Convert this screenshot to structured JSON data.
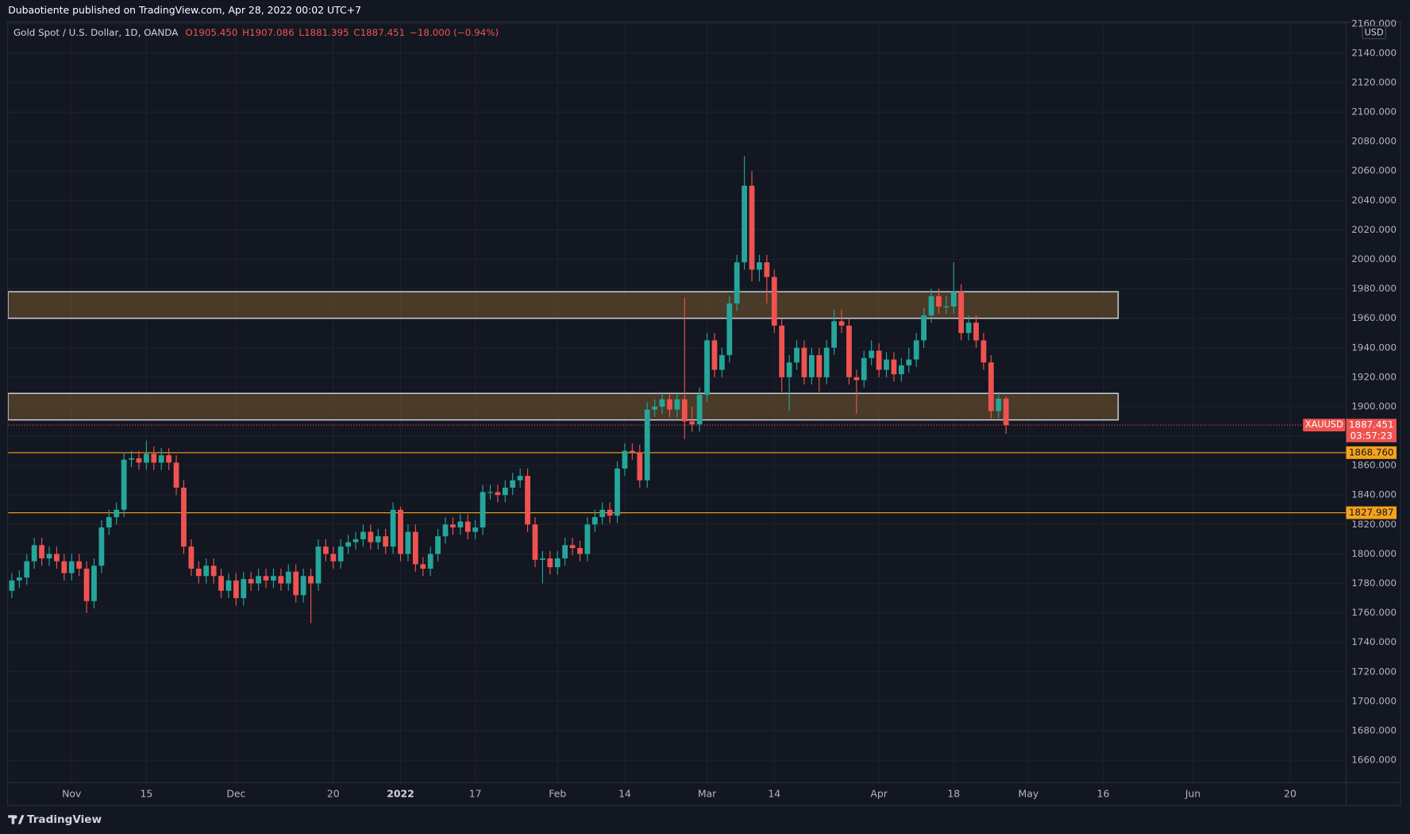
{
  "chart_data": {
    "type": "candlestick",
    "publisher_note": "Dubaotiente published on TradingView.com, Apr 28, 2022 00:02 UTC+7",
    "title": "Gold Spot / U.S. Dollar, 1D, OANDA",
    "ohlc_legend": [
      "O1905.450",
      "H1907.086",
      "L1881.395",
      "C1887.451",
      "−18.000 (−0.94%)"
    ],
    "symbol": "XAUUSD",
    "currency": "USD",
    "countdown": "03:57:23",
    "brand": "TradingView",
    "up_color": "#26a69a",
    "down_color": "#ef5350",
    "grid": true,
    "open": [
      1775,
      1782,
      1784,
      1795,
      1806,
      1797,
      1800,
      1795,
      1787,
      1795,
      1790,
      1768,
      1792,
      1818,
      1825,
      1830,
      1864,
      1865,
      1862,
      1868,
      1862,
      1867,
      1862,
      1845,
      1805,
      1790,
      1785,
      1792,
      1785,
      1775,
      1782,
      1770,
      1783,
      1780,
      1785,
      1782,
      1785,
      1780,
      1788,
      1772,
      1785,
      1780,
      1805,
      1800,
      1795,
      1805,
      1808,
      1810,
      1815,
      1808,
      1812,
      1805,
      1830,
      1800,
      1815,
      1793,
      1790,
      1800,
      1812,
      1820,
      1818,
      1822,
      1815,
      1818,
      1842,
      1842,
      1840,
      1845,
      1850,
      1853,
      1820,
      1796,
      1797,
      1791,
      1797,
      1806,
      1804,
      1800,
      1820,
      1825,
      1830,
      1826,
      1858,
      1870,
      1869,
      1850,
      1898,
      1900,
      1905,
      1898,
      1905,
      1890,
      1888,
      1908,
      1945,
      1925,
      1935,
      1970,
      1998,
      2050,
      1993,
      1998,
      1988,
      1955,
      1920,
      1930,
      1940,
      1920,
      1935,
      1920,
      1940,
      1958,
      1955,
      1920,
      1918,
      1933,
      1938,
      1925,
      1932,
      1922,
      1928,
      1932,
      1945,
      1962,
      1975,
      1968,
      1968,
      1978,
      1950,
      1957,
      1945,
      1930,
      1897,
      1905.45
    ],
    "high": [
      1787,
      1789,
      1800,
      1811,
      1811,
      1805,
      1805,
      1800,
      1800,
      1800,
      1795,
      1797,
      1823,
      1830,
      1835,
      1869,
      1870,
      1870,
      1877,
      1873,
      1872,
      1872,
      1867,
      1850,
      1810,
      1795,
      1797,
      1797,
      1790,
      1787,
      1787,
      1788,
      1788,
      1790,
      1790,
      1790,
      1790,
      1793,
      1793,
      1790,
      1790,
      1810,
      1810,
      1805,
      1810,
      1813,
      1815,
      1820,
      1820,
      1817,
      1817,
      1835,
      1832,
      1820,
      1820,
      1798,
      1805,
      1817,
      1825,
      1825,
      1827,
      1827,
      1823,
      1847,
      1847,
      1847,
      1850,
      1855,
      1858,
      1858,
      1825,
      1802,
      1802,
      1802,
      1811,
      1811,
      1809,
      1825,
      1830,
      1835,
      1835,
      1863,
      1875,
      1875,
      1874,
      1903,
      1905,
      1910,
      1910,
      1910,
      1974,
      1900,
      1913,
      1950,
      1950,
      1940,
      1975,
      2003,
      2070,
      2060,
      2003,
      2003,
      1993,
      1960,
      1935,
      1945,
      1945,
      1940,
      1940,
      1945,
      1966,
      1966,
      1960,
      1925,
      1938,
      1945,
      1943,
      1937,
      1937,
      1933,
      1940,
      1950,
      1967,
      1980,
      1980,
      1975,
      1998,
      1983,
      1962,
      1962,
      1950,
      1935,
      1910,
      1907.086
    ],
    "low": [
      1770,
      1777,
      1779,
      1790,
      1792,
      1792,
      1790,
      1782,
      1782,
      1785,
      1760,
      1763,
      1787,
      1813,
      1820,
      1825,
      1859,
      1857,
      1857,
      1857,
      1857,
      1857,
      1840,
      1800,
      1785,
      1780,
      1780,
      1780,
      1770,
      1770,
      1765,
      1765,
      1775,
      1775,
      1777,
      1777,
      1775,
      1775,
      1767,
      1767,
      1753,
      1775,
      1795,
      1790,
      1790,
      1800,
      1803,
      1805,
      1803,
      1803,
      1800,
      1800,
      1795,
      1795,
      1788,
      1785,
      1785,
      1795,
      1807,
      1813,
      1813,
      1810,
      1810,
      1813,
      1837,
      1835,
      1835,
      1840,
      1845,
      1815,
      1791,
      1780,
      1786,
      1786,
      1792,
      1799,
      1795,
      1795,
      1815,
      1820,
      1821,
      1821,
      1853,
      1864,
      1845,
      1845,
      1893,
      1895,
      1893,
      1893,
      1878,
      1883,
      1883,
      1903,
      1920,
      1920,
      1930,
      1965,
      1993,
      1985,
      1985,
      1970,
      1950,
      1910,
      1897,
      1925,
      1915,
      1915,
      1910,
      1915,
      1935,
      1950,
      1915,
      1895,
      1913,
      1928,
      1920,
      1920,
      1917,
      1917,
      1923,
      1927,
      1940,
      1957,
      1963,
      1963,
      1963,
      1945,
      1945,
      1940,
      1925,
      1892,
      1892,
      1881.395
    ],
    "close": [
      1782,
      1784,
      1795,
      1806,
      1797,
      1800,
      1795,
      1787,
      1795,
      1790,
      1768,
      1792,
      1818,
      1825,
      1830,
      1864,
      1865,
      1862,
      1868,
      1862,
      1867,
      1862,
      1845,
      1805,
      1790,
      1785,
      1792,
      1785,
      1775,
      1782,
      1770,
      1783,
      1780,
      1785,
      1782,
      1785,
      1780,
      1788,
      1772,
      1785,
      1780,
      1805,
      1800,
      1795,
      1805,
      1808,
      1810,
      1815,
      1808,
      1812,
      1805,
      1830,
      1800,
      1815,
      1793,
      1790,
      1800,
      1812,
      1820,
      1818,
      1822,
      1815,
      1818,
      1842,
      1842,
      1840,
      1845,
      1850,
      1853,
      1820,
      1796,
      1797,
      1791,
      1797,
      1806,
      1804,
      1800,
      1820,
      1825,
      1830,
      1826,
      1858,
      1870,
      1869,
      1850,
      1898,
      1900,
      1905,
      1898,
      1905,
      1890,
      1888,
      1908,
      1945,
      1925,
      1935,
      1970,
      1998,
      2050,
      1993,
      1998,
      1988,
      1955,
      1920,
      1930,
      1940,
      1920,
      1935,
      1920,
      1940,
      1958,
      1955,
      1920,
      1918,
      1933,
      1938,
      1925,
      1932,
      1922,
      1928,
      1932,
      1945,
      1962,
      1975,
      1968,
      1968,
      1978,
      1950,
      1957,
      1945,
      1930,
      1897,
      1905.45,
      1887.451
    ],
    "xlim": [
      -0.5,
      178.5
    ],
    "xticks": [
      {
        "value": 8,
        "label": "Nov"
      },
      {
        "value": 18,
        "label": "15"
      },
      {
        "value": 30,
        "label": "Dec"
      },
      {
        "value": 43,
        "label": "20"
      },
      {
        "value": 52,
        "label": "2022"
      },
      {
        "value": 62,
        "label": "17"
      },
      {
        "value": 73,
        "label": "Feb"
      },
      {
        "value": 82,
        "label": "14"
      },
      {
        "value": 93,
        "label": "Mar"
      },
      {
        "value": 102,
        "label": "14"
      },
      {
        "value": 116,
        "label": "Apr"
      },
      {
        "value": 126,
        "label": "18"
      },
      {
        "value": 136,
        "label": "May"
      },
      {
        "value": 146,
        "label": "16"
      },
      {
        "value": 158,
        "label": "Jun"
      },
      {
        "value": 171,
        "label": "20"
      }
    ],
    "ylim": [
      1644.7,
      2161.4
    ],
    "yticks": [
      {
        "value": 1660,
        "label": "1660.000"
      },
      {
        "value": 1680,
        "label": "1680.000"
      },
      {
        "value": 1700,
        "label": "1700.000"
      },
      {
        "value": 1720,
        "label": "1720.000"
      },
      {
        "value": 1740,
        "label": "1740.000"
      },
      {
        "value": 1760,
        "label": "1760.000"
      },
      {
        "value": 1780,
        "label": "1780.000"
      },
      {
        "value": 1800,
        "label": "1800.000"
      },
      {
        "value": 1820,
        "label": "1820.000"
      },
      {
        "value": 1840,
        "label": "1840.000"
      },
      {
        "value": 1860,
        "label": "1860.000"
      },
      {
        "value": 1880,
        "label": "1880.000"
      },
      {
        "value": 1900,
        "label": "1900.000"
      },
      {
        "value": 1920,
        "label": "1920.000"
      },
      {
        "value": 1940,
        "label": "1940.000"
      },
      {
        "value": 1960,
        "label": "1960.000"
      },
      {
        "value": 1980,
        "label": "1980.000"
      },
      {
        "value": 2000,
        "label": "2000.000"
      },
      {
        "value": 2020,
        "label": "2020.000"
      },
      {
        "value": 2040,
        "label": "2040.000"
      },
      {
        "value": 2060,
        "label": "2060.000"
      },
      {
        "value": 2080,
        "label": "2080.000"
      },
      {
        "value": 2100,
        "label": "2100.000"
      },
      {
        "value": 2120,
        "label": "2120.000"
      },
      {
        "value": 2140,
        "label": "2140.000"
      },
      {
        "value": 2160,
        "label": "2160.000"
      }
    ],
    "zones": [
      {
        "xlim": [
          -0.5,
          148
        ],
        "ylim": [
          1960,
          1978
        ]
      },
      {
        "xlim": [
          -0.5,
          148
        ],
        "ylim": [
          1891,
          1909
        ]
      }
    ],
    "hlines": [
      {
        "value": 1868.76,
        "label": "1868.760",
        "color": "#f7a21b"
      },
      {
        "value": 1827.987,
        "label": "1827.987",
        "color": "#f7a21b"
      }
    ]
  }
}
